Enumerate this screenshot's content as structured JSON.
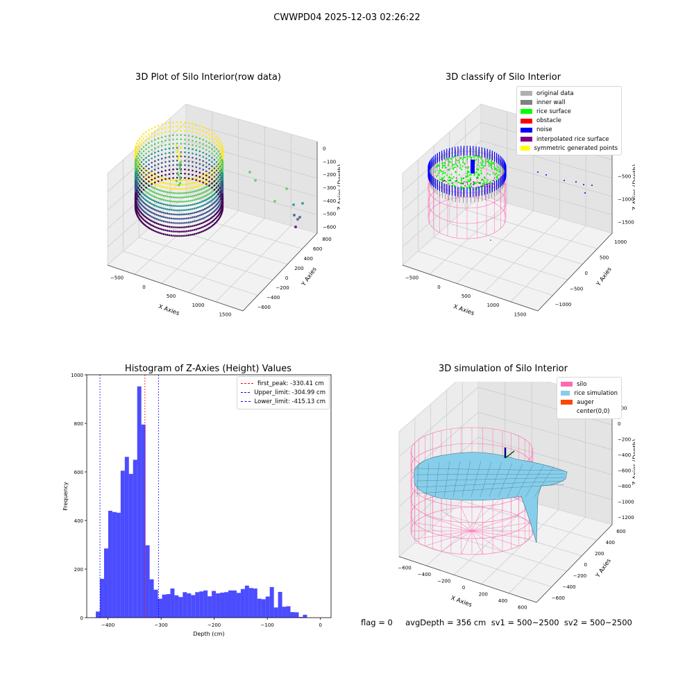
{
  "suptitle": "CWWPD04 2025-12-03 02:26:22",
  "footer": "flag = 0     avgDepth = 356 cm  sv1 = 500~2500  sv2 = 500~2500",
  "colors": {
    "viridis": [
      "#440154",
      "#3b528b",
      "#21918c",
      "#5ec962",
      "#fde725"
    ],
    "original": "#b0b0b0",
    "inner_wall": "#808080",
    "rice_surface": "#00ff00",
    "obstacle": "#ff0000",
    "noise": "#0000ff",
    "interpolated": "#800080",
    "symmetric": "#ffff00",
    "silo": "#ff69b4",
    "rice_sim": "#87ceeb",
    "auger": "#ff4500",
    "hist_bar": "#0000ff"
  },
  "chart_data": [
    {
      "type": "scatter",
      "subtype": "3d",
      "title": "3D Plot of Silo Interior(row data)",
      "xlabel": "X Axies",
      "ylabel": "Y Axies",
      "zlabel": "Z Axies (Depth)",
      "xticks": [
        "−500",
        "0",
        "500",
        "1000",
        "1500"
      ],
      "yticks": [
        "−600",
        "−400",
        "−200",
        "0",
        "200",
        "400",
        "600",
        "800"
      ],
      "zticks": [
        "0",
        "−100",
        "−200",
        "−300",
        "−400",
        "−500",
        "−600"
      ],
      "colormap": "viridis"
    },
    {
      "type": "scatter",
      "subtype": "3d",
      "title": "3D classify of Silo Interior",
      "xlabel": "X Axies",
      "ylabel": "Y Axies",
      "zlabel": "Z Axies (Depth)",
      "xticks": [
        "−500",
        "0",
        "500",
        "1000",
        "1500"
      ],
      "yticks": [
        "−1000",
        "−500",
        "0",
        "500",
        "1000"
      ],
      "zticks": [
        "0",
        "−500",
        "−1000",
        "−1500"
      ],
      "legend": [
        {
          "label": "original data",
          "color": "#b0b0b0"
        },
        {
          "label": "inner wall",
          "color": "#808080"
        },
        {
          "label": "rice surface",
          "color": "#00ff00"
        },
        {
          "label": "obstacle",
          "color": "#ff0000"
        },
        {
          "label": "noise",
          "color": "#0000ff"
        },
        {
          "label": "interpolated rice surface",
          "color": "#800080"
        },
        {
          "label": "symmetric generated points",
          "color": "#ffff00"
        }
      ]
    },
    {
      "type": "bar",
      "subtype": "histogram",
      "title": "Histogram of Z-Axies (Height) Values",
      "xlabel": "Depth (cm)",
      "ylabel": "Frequency",
      "xlim": [
        -440,
        20
      ],
      "ylim": [
        0,
        1000
      ],
      "xticks": [
        -400,
        -300,
        -200,
        -100,
        0
      ],
      "xtick_labels": [
        "−400",
        "−300",
        "−200",
        "−100",
        "0"
      ],
      "yticks": [
        0,
        200,
        400,
        600,
        800,
        1000
      ],
      "bin_width": 7.8,
      "bin_start": -423,
      "values": [
        25,
        160,
        285,
        440,
        435,
        432,
        605,
        662,
        592,
        650,
        952,
        795,
        298,
        158,
        115,
        78,
        95,
        97,
        120,
        92,
        85,
        105,
        100,
        93,
        105,
        108,
        112,
        88,
        110,
        100,
        103,
        105,
        112,
        112,
        102,
        118,
        132,
        122,
        120,
        78,
        76,
        87,
        126,
        42,
        106,
        45,
        47,
        23,
        22,
        3,
        12
      ],
      "lines": [
        {
          "label": "first_peak: -330.41 cm",
          "x": -330.41,
          "color": "#ff0000"
        },
        {
          "label": "Upper_limit: -304.99 cm",
          "x": -304.99,
          "color": "#0000ff"
        },
        {
          "label": "Lower_limit: -415.13 cm",
          "x": -415.13,
          "color": "#0000ff"
        }
      ]
    },
    {
      "type": "area",
      "subtype": "3d-surface",
      "title": "3D simulation of Silo Interior",
      "xlabel": "X Axies",
      "ylabel": "Y Axies",
      "zlabel": "Z Axies (Depth)",
      "xticks": [
        "−600",
        "−400",
        "−200",
        "0",
        "200",
        "400",
        "600"
      ],
      "yticks": [
        "−600",
        "−400",
        "−200",
        "0",
        "200",
        "400",
        "600"
      ],
      "zticks": [
        "200",
        "0",
        "−200",
        "−400",
        "−600",
        "−800",
        "−1000",
        "−1200"
      ],
      "legend": [
        {
          "label": "silo",
          "color": "#ff69b4"
        },
        {
          "label": "rice simulation",
          "color": "#87ceeb"
        },
        {
          "label": "auger",
          "color": "#ff4500"
        },
        {
          "label": "center(0,0)",
          "color": ""
        }
      ]
    }
  ]
}
